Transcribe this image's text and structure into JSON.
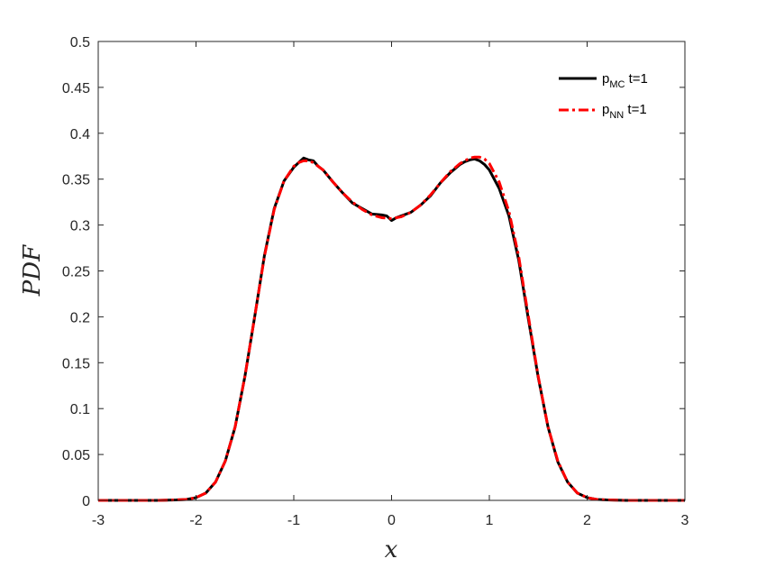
{
  "chart_data": {
    "type": "line",
    "xlabel": "x",
    "ylabel": "PDF",
    "xlim": [
      -3,
      3
    ],
    "ylim": [
      0,
      0.5
    ],
    "x_ticks": [
      "-3",
      "-2",
      "-1",
      "0",
      "1",
      "2",
      "3"
    ],
    "y_ticks": [
      "0",
      "0.05",
      "0.1",
      "0.15",
      "0.2",
      "0.25",
      "0.3",
      "0.35",
      "0.4",
      "0.45",
      "0.5"
    ],
    "grid": false,
    "box": true,
    "legend_position": "top-right",
    "series": [
      {
        "name": "p_MC t=1",
        "name_main": "p",
        "name_sub": "MC",
        "name_suffix": " t=1",
        "color": "#000000",
        "line_style": "solid",
        "x": [
          -3.0,
          -2.4,
          -2.2,
          -2.1,
          -2.0,
          -1.9,
          -1.8,
          -1.7,
          -1.6,
          -1.5,
          -1.4,
          -1.3,
          -1.2,
          -1.1,
          -1.0,
          -0.95,
          -0.9,
          -0.85,
          -0.8,
          -0.75,
          -0.7,
          -0.6,
          -0.5,
          -0.4,
          -0.3,
          -0.2,
          -0.1,
          -0.05,
          0.0,
          0.05,
          0.1,
          0.2,
          0.3,
          0.4,
          0.5,
          0.6,
          0.7,
          0.75,
          0.8,
          0.85,
          0.9,
          0.95,
          1.0,
          1.1,
          1.2,
          1.3,
          1.4,
          1.5,
          1.6,
          1.7,
          1.8,
          1.9,
          2.0,
          2.1,
          2.2,
          2.4,
          3.0
        ],
        "y": [
          0.0,
          0.0,
          0.0005,
          0.001,
          0.003,
          0.008,
          0.02,
          0.043,
          0.08,
          0.135,
          0.2,
          0.267,
          0.318,
          0.348,
          0.363,
          0.368,
          0.373,
          0.371,
          0.37,
          0.364,
          0.36,
          0.347,
          0.335,
          0.324,
          0.318,
          0.312,
          0.311,
          0.31,
          0.305,
          0.308,
          0.31,
          0.314,
          0.322,
          0.332,
          0.346,
          0.357,
          0.366,
          0.369,
          0.371,
          0.372,
          0.37,
          0.366,
          0.36,
          0.34,
          0.31,
          0.262,
          0.197,
          0.134,
          0.08,
          0.042,
          0.02,
          0.008,
          0.003,
          0.001,
          0.0005,
          0.0,
          0.0
        ]
      },
      {
        "name": "p_NN t=1",
        "name_main": "p",
        "name_sub": "NN",
        "name_suffix": " t=1",
        "color": "#ff0000",
        "line_style": "dash-dot",
        "x": [
          -3.0,
          -2.4,
          -2.2,
          -2.1,
          -2.0,
          -1.9,
          -1.8,
          -1.7,
          -1.6,
          -1.5,
          -1.4,
          -1.3,
          -1.2,
          -1.1,
          -1.0,
          -0.95,
          -0.9,
          -0.85,
          -0.8,
          -0.7,
          -0.6,
          -0.5,
          -0.4,
          -0.3,
          -0.2,
          -0.1,
          0.0,
          0.1,
          0.2,
          0.3,
          0.4,
          0.5,
          0.6,
          0.7,
          0.8,
          0.85,
          0.9,
          0.95,
          1.0,
          1.1,
          1.2,
          1.3,
          1.4,
          1.5,
          1.6,
          1.7,
          1.8,
          1.9,
          2.0,
          2.1,
          2.2,
          2.4,
          3.0
        ],
        "y": [
          0.0,
          0.0,
          0.0005,
          0.001,
          0.003,
          0.008,
          0.02,
          0.043,
          0.08,
          0.135,
          0.2,
          0.266,
          0.317,
          0.348,
          0.364,
          0.368,
          0.37,
          0.37,
          0.368,
          0.36,
          0.347,
          0.335,
          0.325,
          0.317,
          0.311,
          0.308,
          0.307,
          0.309,
          0.314,
          0.322,
          0.333,
          0.346,
          0.358,
          0.367,
          0.373,
          0.374,
          0.374,
          0.372,
          0.367,
          0.347,
          0.315,
          0.266,
          0.2,
          0.135,
          0.08,
          0.043,
          0.02,
          0.008,
          0.003,
          0.001,
          0.0005,
          0.0,
          0.0
        ]
      }
    ]
  }
}
